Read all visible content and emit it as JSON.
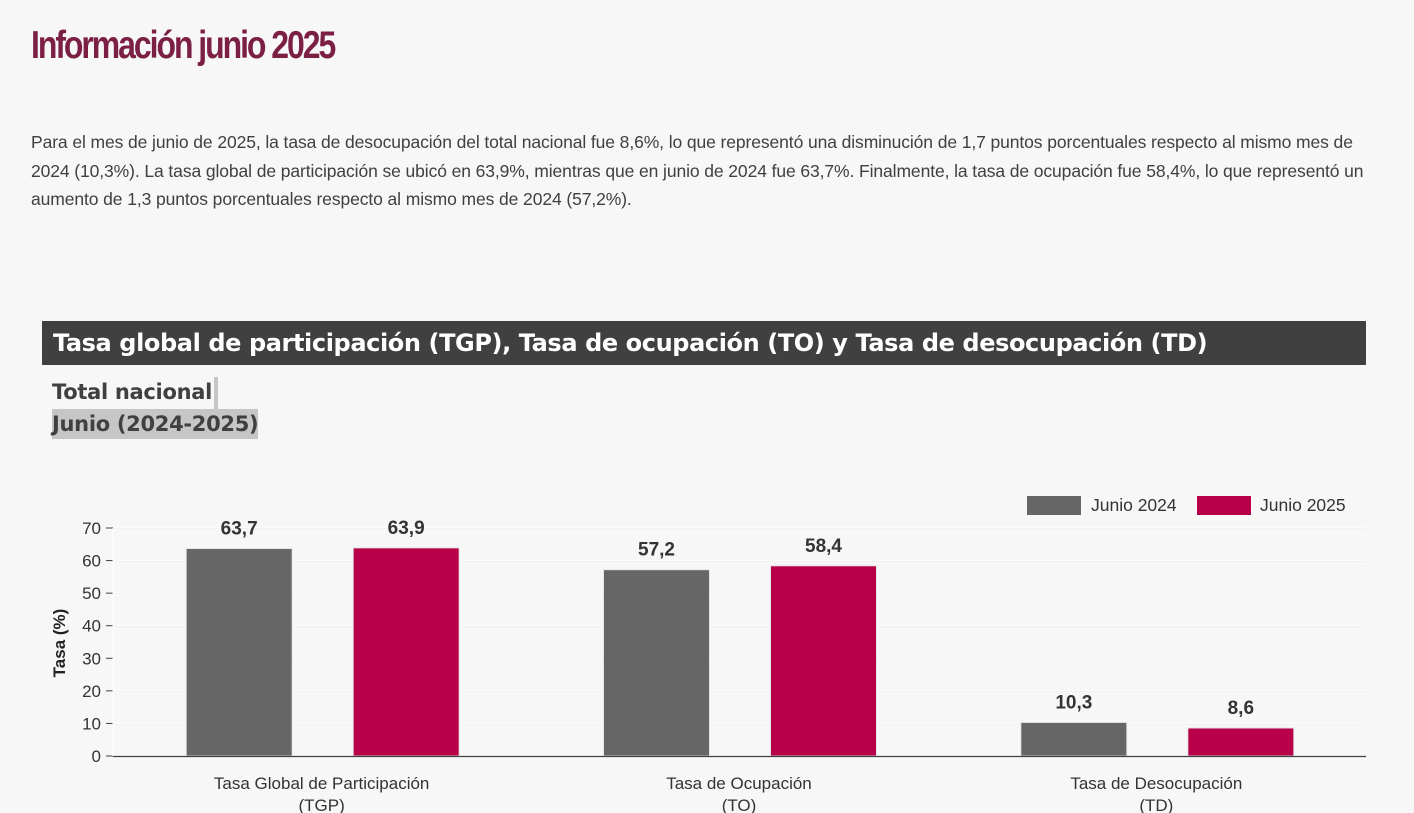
{
  "page": {
    "title": "Información junio 2025",
    "intro": "Para el mes de junio de 2025, la tasa de desocupación del total nacional fue 8,6%, lo que representó una disminución de 1,7 puntos porcentuales respecto al mismo mes de 2024 (10,3%). La tasa global de participación se ubicó en 63,9%, mientras que en junio de 2024 fue 63,7%. Finalmente, la tasa de ocupación fue 58,4%, lo que representó un aumento de 1,3 puntos porcentuales respecto al mismo mes de 2024 (57,2%)."
  },
  "chart_header": {
    "title": "Tasa global de participación (TGP), Tasa de ocupación (TO) y Tasa de desocupación (TD)",
    "subtitle_line1": "Total nacional",
    "subtitle_line2": "Junio (2024-2025)"
  },
  "chart_data": {
    "type": "bar",
    "categories": [
      [
        "Tasa Global de Participación",
        "(TGP)"
      ],
      [
        "Tasa de Ocupación",
        "(TO)"
      ],
      [
        "Tasa de Desocupación",
        "(TD)"
      ]
    ],
    "series": [
      {
        "name": "Junio 2024",
        "color": "#666666",
        "values": [
          63.7,
          57.2,
          10.3
        ],
        "labels": [
          "63,7",
          "57,2",
          "10,3"
        ]
      },
      {
        "name": "Junio 2025",
        "color": "#b8004a",
        "values": [
          63.9,
          58.4,
          8.6
        ],
        "labels": [
          "63,9",
          "58,4",
          "8,6"
        ]
      }
    ],
    "ylabel": "Tasa (%)",
    "xlabel": "",
    "ylim": [
      0,
      70
    ],
    "yticks": [
      0,
      10,
      20,
      30,
      40,
      50,
      60,
      70
    ],
    "grid": true,
    "legend_position": "top-right"
  }
}
